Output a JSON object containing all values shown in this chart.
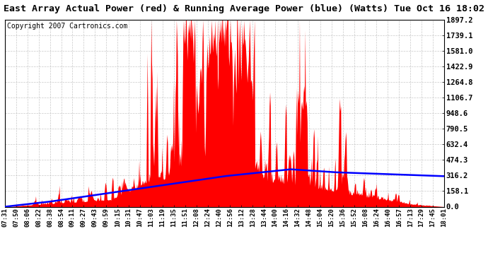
{
  "title": "East Array Actual Power (red) & Running Average Power (blue) (Watts) Tue Oct 16 18:02",
  "copyright": "Copyright 2007 Cartronics.com",
  "ylabel_right_ticks": [
    0.0,
    158.1,
    316.2,
    474.3,
    632.4,
    790.5,
    948.6,
    1106.7,
    1264.8,
    1422.9,
    1581.0,
    1739.1,
    1897.2
  ],
  "ymax": 1897.2,
  "ymin": 0.0,
  "bar_color": "#FF0000",
  "avg_color": "#0000FF",
  "background_color": "#FFFFFF",
  "grid_color": "#BBBBBB",
  "title_font_size": 9.5,
  "copyright_font_size": 7,
  "x_tick_labels": [
    "07:31",
    "07:50",
    "08:06",
    "08:22",
    "08:38",
    "08:54",
    "09:11",
    "09:27",
    "09:43",
    "09:59",
    "10:15",
    "10:31",
    "10:47",
    "11:03",
    "11:19",
    "11:35",
    "11:51",
    "12:08",
    "12:24",
    "12:40",
    "12:56",
    "13:12",
    "13:28",
    "13:44",
    "14:00",
    "14:16",
    "14:32",
    "14:48",
    "15:04",
    "15:20",
    "15:36",
    "15:52",
    "16:08",
    "16:24",
    "16:40",
    "16:57",
    "17:13",
    "17:29",
    "17:45",
    "18:01"
  ],
  "num_points": 800
}
